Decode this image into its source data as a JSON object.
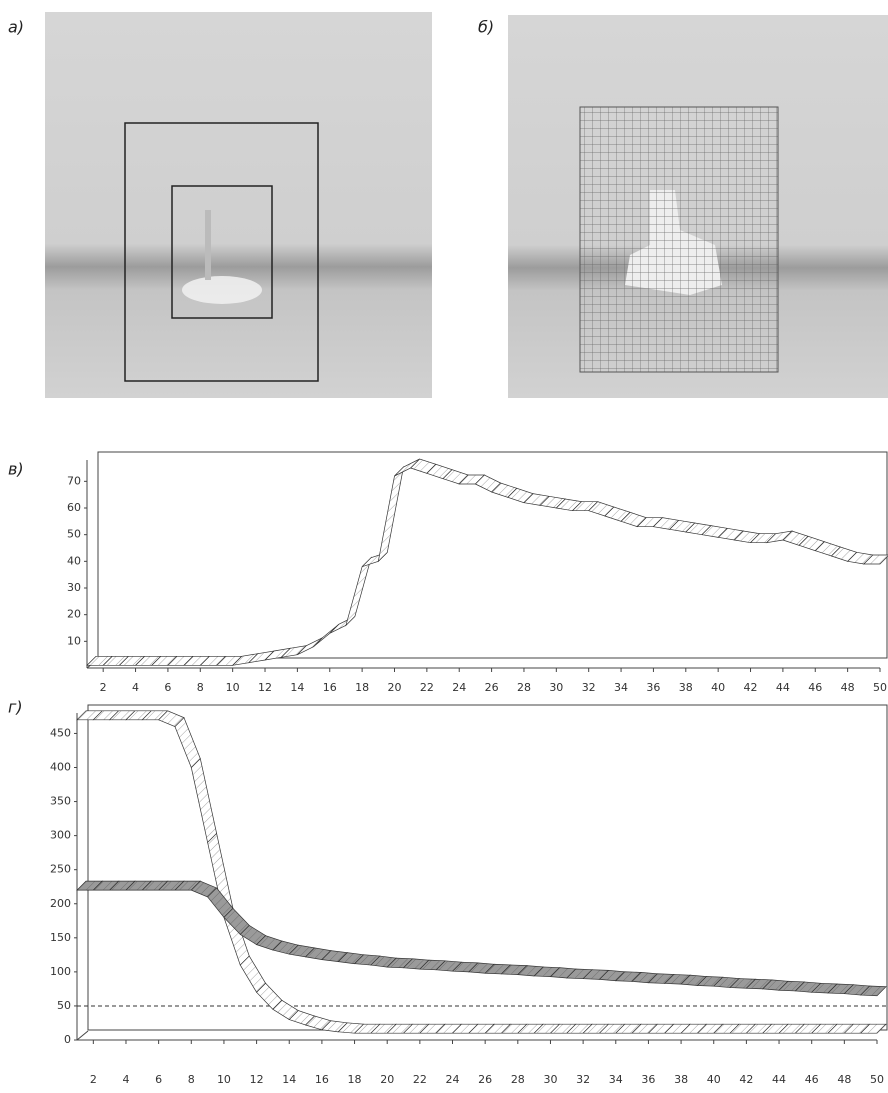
{
  "panels": [
    {
      "label": "а)"
    },
    {
      "label": "б)"
    }
  ],
  "chart_data": [
    {
      "type": "ribbon",
      "label": "в)",
      "x": [
        1,
        2,
        3,
        4,
        5,
        6,
        7,
        8,
        9,
        10,
        11,
        12,
        13,
        14,
        15,
        16,
        17,
        18,
        19,
        20,
        21,
        22,
        23,
        24,
        25,
        26,
        27,
        28,
        29,
        30,
        31,
        32,
        33,
        34,
        35,
        36,
        37,
        38,
        39,
        40,
        41,
        42,
        43,
        44,
        45,
        46,
        47,
        48,
        49,
        50
      ],
      "series": [
        {
          "color": "#ffffff",
          "values": [
            1,
            1,
            1,
            1,
            1,
            1,
            1,
            1,
            1,
            1,
            2,
            3,
            4,
            5,
            8,
            13,
            16,
            38,
            40,
            72,
            75,
            73,
            71,
            69,
            69,
            66,
            64,
            62,
            61,
            60,
            59,
            59,
            57,
            55,
            53,
            53,
            52,
            51,
            50,
            49,
            48,
            47,
            47,
            48,
            46,
            44,
            42,
            40,
            39,
            39
          ]
        }
      ],
      "xlim": [
        1,
        50
      ],
      "ylim": [
        0,
        78
      ],
      "xticks": [
        2,
        4,
        6,
        8,
        10,
        12,
        14,
        16,
        18,
        20,
        22,
        24,
        26,
        28,
        30,
        32,
        34,
        36,
        38,
        40,
        42,
        44,
        46,
        48,
        50
      ],
      "yticks": [
        10,
        20,
        30,
        40,
        50,
        60,
        70
      ]
    },
    {
      "type": "ribbon",
      "label": "г)",
      "x": [
        1,
        2,
        3,
        4,
        5,
        6,
        7,
        8,
        9,
        10,
        11,
        12,
        13,
        14,
        15,
        16,
        17,
        18,
        19,
        20,
        21,
        22,
        23,
        24,
        25,
        26,
        27,
        28,
        29,
        30,
        31,
        32,
        33,
        34,
        35,
        36,
        37,
        38,
        39,
        40,
        41,
        42,
        43,
        44,
        45,
        46,
        47,
        48,
        49,
        50
      ],
      "series": [
        {
          "color": "#ffffff",
          "values": [
            470,
            470,
            470,
            470,
            470,
            470,
            460,
            400,
            290,
            180,
            110,
            70,
            45,
            30,
            22,
            15,
            12,
            10,
            10,
            10,
            10,
            10,
            10,
            10,
            10,
            10,
            10,
            10,
            10,
            10,
            10,
            10,
            10,
            10,
            10,
            10,
            10,
            10,
            10,
            10,
            10,
            10,
            10,
            10,
            10,
            10,
            10,
            10,
            10,
            10
          ]
        },
        {
          "color": "#9a9a9a",
          "values": [
            220,
            220,
            220,
            220,
            220,
            220,
            220,
            220,
            210,
            180,
            155,
            140,
            132,
            126,
            122,
            118,
            115,
            112,
            110,
            107,
            106,
            104,
            103,
            101,
            100,
            98,
            97,
            96,
            94,
            93,
            91,
            90,
            89,
            87,
            86,
            84,
            83,
            82,
            80,
            79,
            77,
            76,
            75,
            73,
            72,
            70,
            69,
            68,
            66,
            65
          ]
        }
      ],
      "hline": 50,
      "xlim": [
        1,
        50
      ],
      "ylim": [
        0,
        480
      ],
      "xticks": [
        2,
        4,
        6,
        8,
        10,
        12,
        14,
        16,
        18,
        20,
        22,
        24,
        26,
        28,
        30,
        32,
        34,
        36,
        38,
        40,
        42,
        44,
        46,
        48,
        50
      ],
      "yticks": [
        0,
        50,
        100,
        150,
        200,
        250,
        300,
        350,
        400,
        450
      ]
    }
  ]
}
